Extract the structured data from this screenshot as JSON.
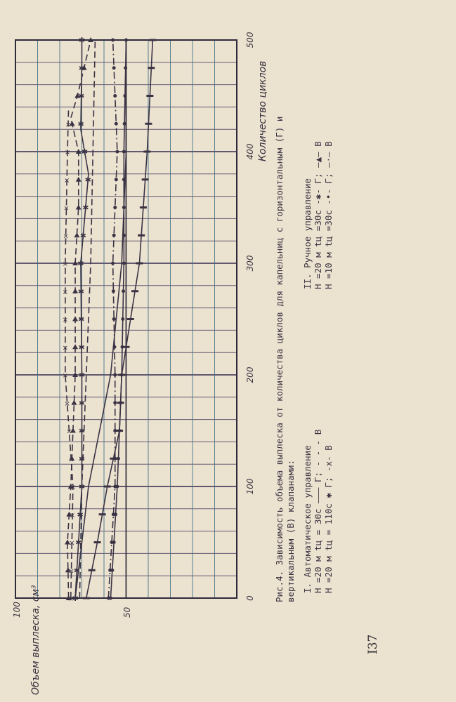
{
  "page_number": "I37",
  "caption": {
    "line1": "Рис.4. Зависимость объема выплеска от количества циклов для капельниц с горизонтальным (Г) и",
    "line2": "вертикальным (В) клапанами:",
    "auto": {
      "title": "I. Автоматическое управление",
      "row1": "H =20 м   tц = 30с ——— Г; - - - В",
      "row2": "H =20 м   tц = 110с ✱ Г;  -x- В"
    },
    "manual": {
      "title": "II. Ручное управление",
      "row1": "H =20 м   tц =30с -✱- Г; —▲— В",
      "row2": "H =10 м   tц =30с -•- Г; —·— В"
    }
  },
  "chart_data": {
    "type": "line",
    "orientation": "rotated 90° (cycles axis vertical, volume axis horizontal)",
    "xlabel": "Количество циклов",
    "ylabel": "Объем выплеска, см³",
    "xlim": [
      0,
      500
    ],
    "ylim": [
      0,
      100
    ],
    "x_ticks": [
      "0",
      "100",
      "200",
      "300",
      "400",
      "500"
    ],
    "y_ticks": [
      "100",
      "50"
    ],
    "grid": true,
    "x_grid_step": 20,
    "y_grid_step": 10,
    "line_color": "#3a3344",
    "grid_color": "#4a4260",
    "series": [
      {
        "style": "solid",
        "marker": "none",
        "x": [
          0,
          100,
          200,
          300,
          400,
          500
        ],
        "y": [
          73,
          67,
          57,
          52,
          50,
          50
        ]
      },
      {
        "style": "solid",
        "marker": "tick",
        "x": [
          0,
          50,
          100,
          150,
          200,
          300,
          400,
          500
        ],
        "y": [
          68,
          63,
          58.5,
          53,
          52,
          44,
          40.5,
          38
        ]
      },
      {
        "style": "dashdot",
        "marker": "dot",
        "x": [
          0,
          100,
          200,
          300,
          400,
          500
        ],
        "y": [
          58,
          55,
          55,
          56,
          54,
          56
        ]
      },
      {
        "style": "solid",
        "marker": "dot",
        "x": [
          0,
          100,
          200,
          300,
          400,
          500
        ],
        "y": [
          57,
          54,
          52,
          51,
          51,
          50
        ]
      },
      {
        "style": "dashed",
        "marker": "none",
        "x": [
          0,
          100,
          200,
          300,
          400,
          500
        ],
        "y": [
          71,
          70,
          68,
          66,
          65,
          64
        ]
      },
      {
        "style": "dashed",
        "marker": "cross",
        "x": [
          0,
          100,
          200,
          300,
          400,
          440
        ],
        "y": [
          75,
          74,
          77.5,
          77.5,
          76.5,
          76
        ]
      },
      {
        "style": "dashed",
        "marker": "triangle",
        "x": [
          0,
          50,
          100,
          200,
          300,
          350,
          400,
          430,
          450,
          500
        ],
        "y": [
          76,
          76.5,
          75,
          73,
          73,
          71.5,
          71.5,
          75,
          72,
          66
        ]
      },
      {
        "style": "solid",
        "marker": "star",
        "x": [
          0,
          100,
          200,
          300,
          380,
          420,
          480,
          500
        ],
        "y": [
          73,
          70,
          70,
          70.5,
          67,
          70.5,
          70,
          70
        ]
      }
    ]
  }
}
